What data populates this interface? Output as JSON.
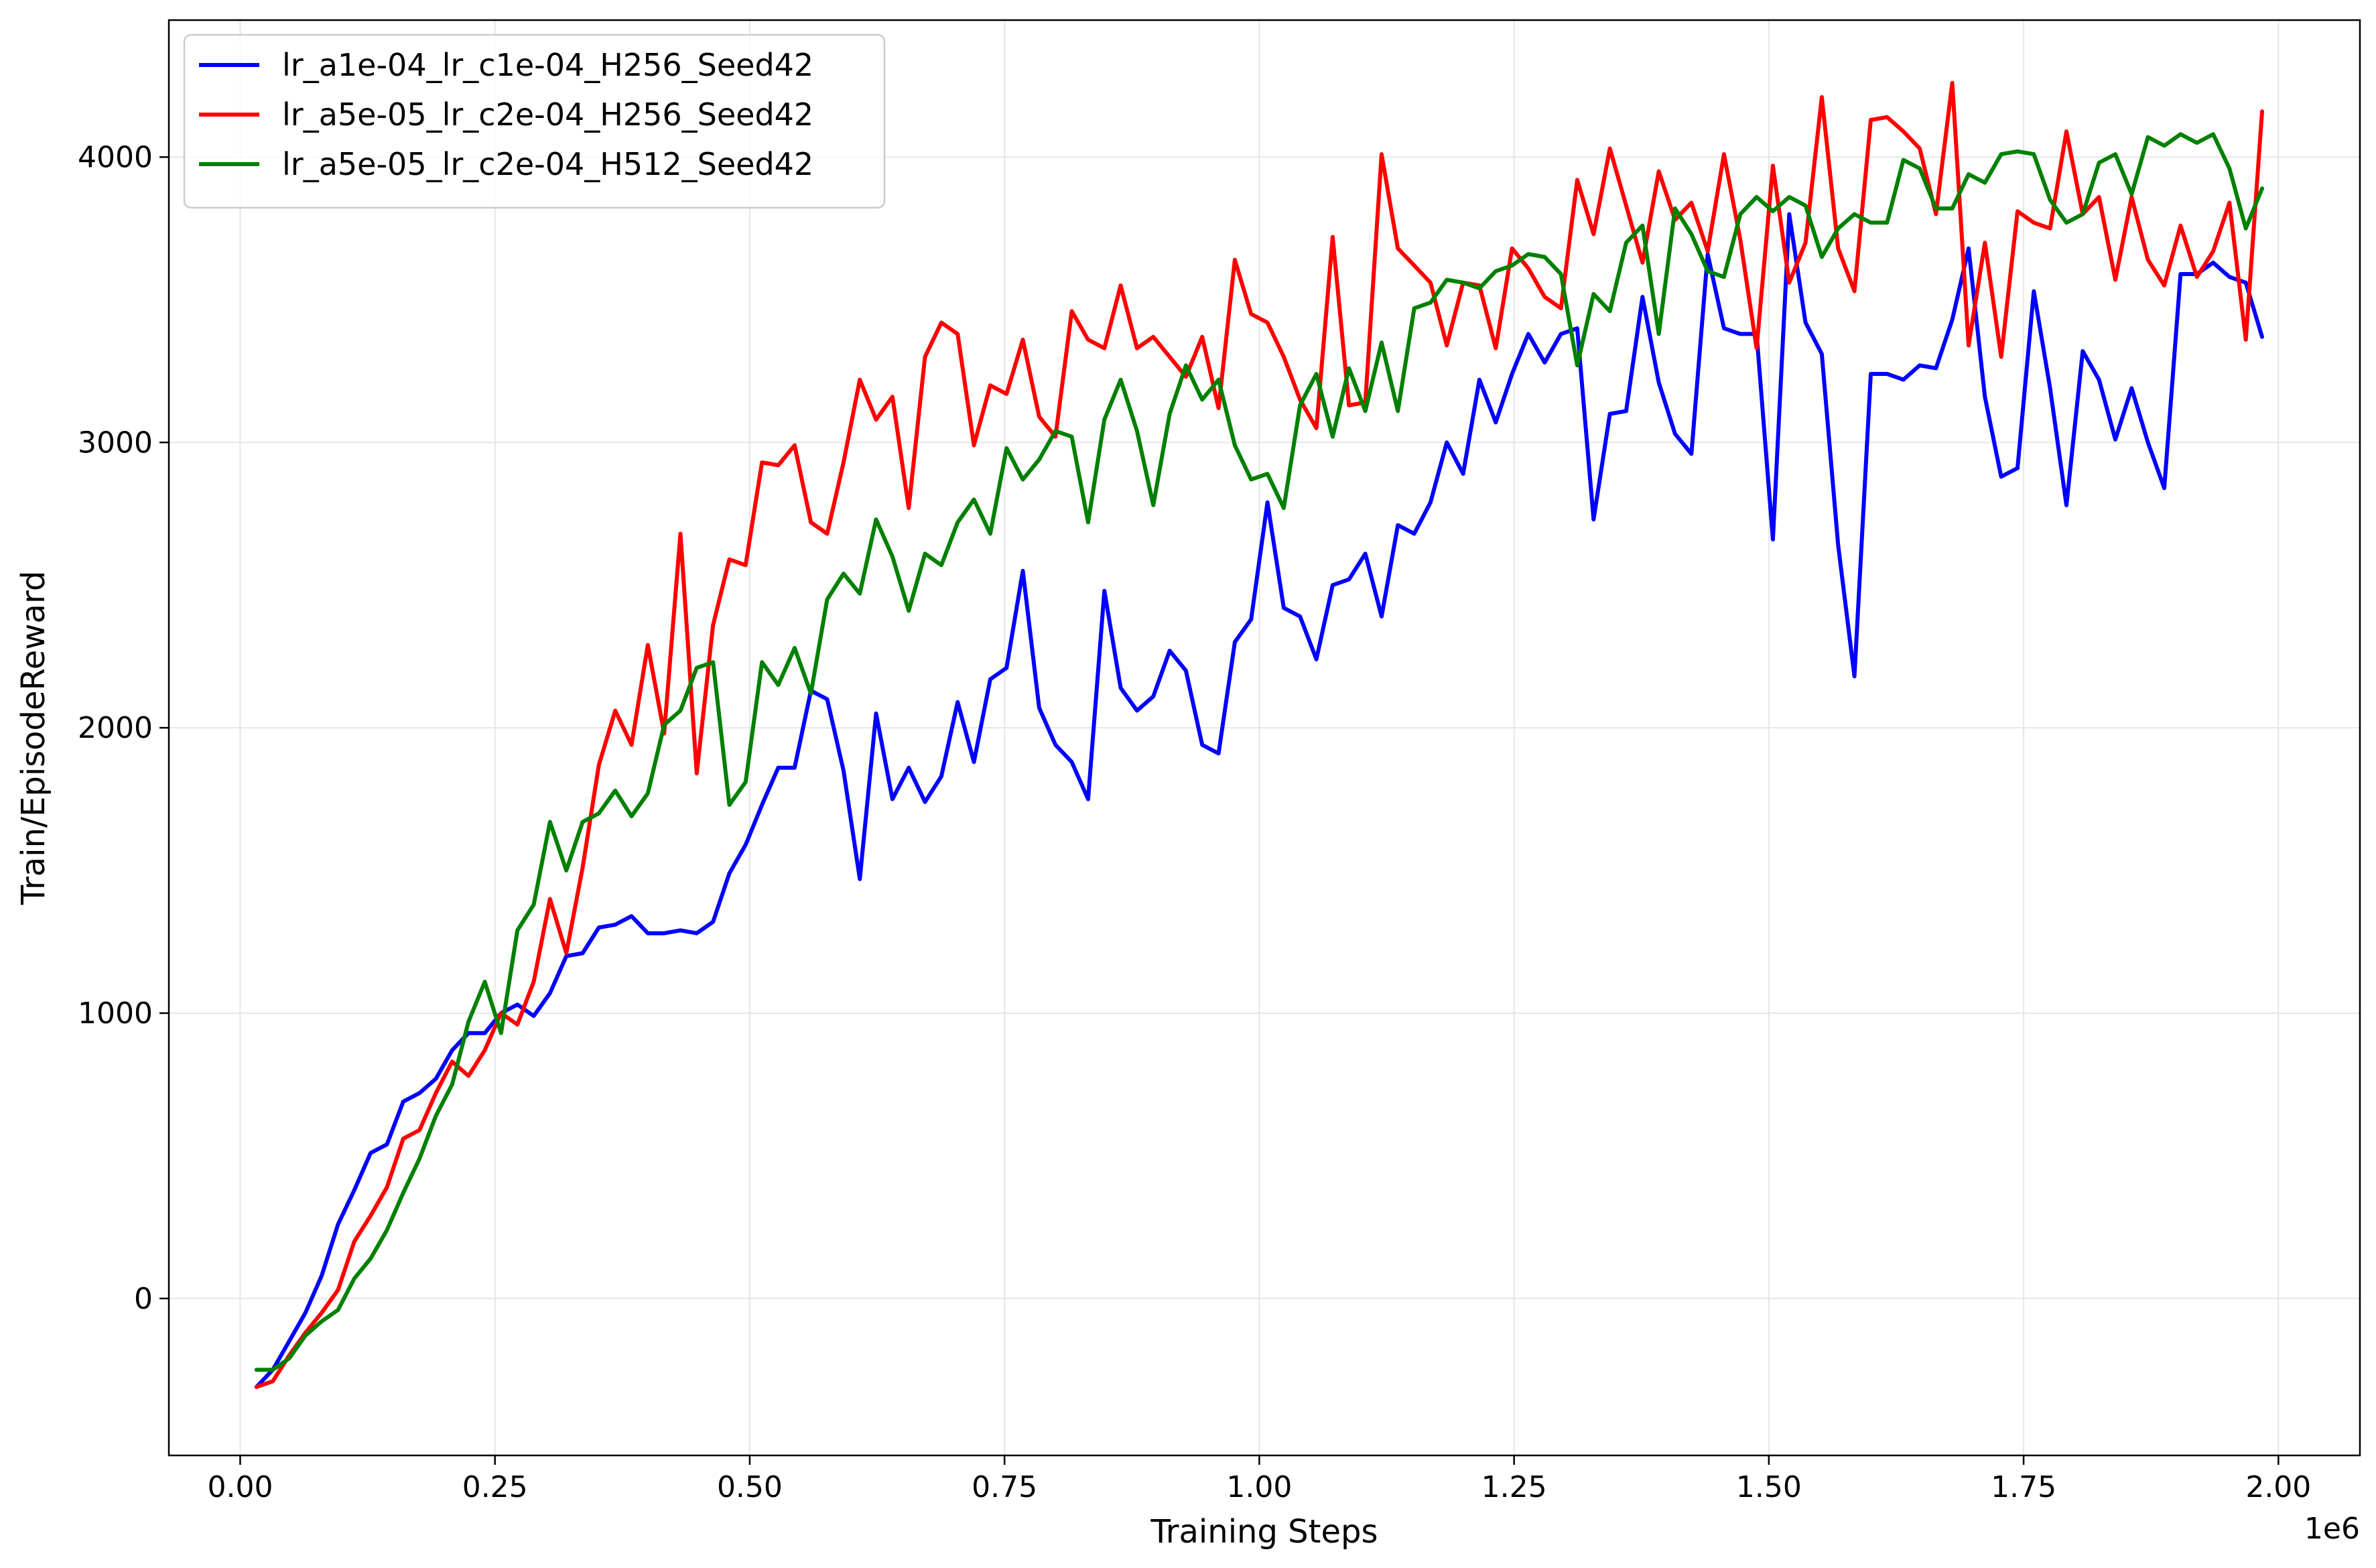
{
  "chart_data": {
    "type": "line",
    "title": "",
    "xlabel": "Training Steps",
    "ylabel": "Train/EpisodeReward",
    "x_offset_label": "1e6",
    "xlim": [
      -0.07,
      2.08
    ],
    "ylim": [
      -550,
      4480
    ],
    "xticks": [
      0.0,
      0.25,
      0.5,
      0.75,
      1.0,
      1.25,
      1.5,
      1.75,
      2.0
    ],
    "xtick_labels": [
      "0.00",
      "0.25",
      "0.50",
      "0.75",
      "1.00",
      "1.25",
      "1.50",
      "1.75",
      "2.00"
    ],
    "yticks": [
      0,
      1000,
      2000,
      3000,
      4000
    ],
    "ytick_labels": [
      "0",
      "1000",
      "2000",
      "3000",
      "4000"
    ],
    "grid": true,
    "legend_position": "top-left",
    "x_start": 0.016,
    "x_step": 0.016,
    "series": [
      {
        "name": "lr_a1e-04_lr_c1e-04_H256_Seed42",
        "color": "#0000ff",
        "values": [
          -310,
          -250,
          -150,
          -50,
          80,
          260,
          380,
          510,
          540,
          690,
          720,
          770,
          870,
          930,
          930,
          1000,
          1030,
          990,
          1070,
          1200,
          1210,
          1300,
          1310,
          1340,
          1280,
          1280,
          1290,
          1280,
          1320,
          1490,
          1590,
          1730,
          1860,
          1860,
          2130,
          2100,
          1850,
          1470,
          2050,
          1750,
          1860,
          1740,
          1830,
          2090,
          1880,
          2170,
          2210,
          2550,
          2070,
          1940,
          1880,
          1750,
          2480,
          2140,
          2060,
          2110,
          2270,
          2200,
          1940,
          1910,
          2300,
          2380,
          2790,
          2420,
          2390,
          2240,
          2500,
          2520,
          2610,
          2390,
          2710,
          2680,
          2790,
          3000,
          2890,
          3220,
          3070,
          3240,
          3380,
          3280,
          3380,
          3400,
          2730,
          3100,
          3110,
          3510,
          3210,
          3030,
          2960,
          3660,
          3400,
          3380,
          3380,
          2660,
          3800,
          3420,
          3310,
          2640,
          2180,
          3240,
          3240,
          3220,
          3270,
          3260,
          3430,
          3680,
          3160,
          2880,
          2910,
          3530,
          3190,
          2780,
          3320,
          3220,
          3010,
          3190,
          3000,
          2840,
          3590,
          3590,
          3630,
          3580,
          3560,
          3370
        ]
      },
      {
        "name": "lr_a5e-05_lr_c2e-04_H256_Seed42",
        "color": "#ff0000",
        "values": [
          -310,
          -290,
          -200,
          -120,
          -50,
          30,
          200,
          290,
          390,
          560,
          590,
          720,
          830,
          780,
          870,
          1000,
          960,
          1110,
          1400,
          1210,
          1510,
          1870,
          2060,
          1940,
          2290,
          1980,
          2680,
          1840,
          2360,
          2590,
          2570,
          2930,
          2920,
          2990,
          2720,
          2680,
          2930,
          3220,
          3080,
          3160,
          2770,
          3300,
          3420,
          3380,
          2990,
          3200,
          3170,
          3360,
          3090,
          3020,
          3460,
          3360,
          3330,
          3550,
          3330,
          3370,
          3300,
          3230,
          3370,
          3120,
          3640,
          3450,
          3420,
          3300,
          3150,
          3050,
          3720,
          3130,
          3140,
          4010,
          3680,
          3620,
          3560,
          3340,
          3560,
          3550,
          3330,
          3680,
          3610,
          3510,
          3470,
          3920,
          3730,
          4030,
          3830,
          3630,
          3950,
          3780,
          3840,
          3670,
          4010,
          3710,
          3330,
          3970,
          3560,
          3700,
          4210,
          3680,
          3530,
          4130,
          4140,
          4090,
          4030,
          3800,
          4260,
          3340,
          3700,
          3300,
          3810,
          3770,
          3750,
          4090,
          3800,
          3860,
          3570,
          3860,
          3640,
          3550,
          3760,
          3580,
          3670,
          3840,
          3360,
          4160
        ]
      },
      {
        "name": "lr_a5e-05_lr_c2e-04_H512_Seed42",
        "color": "#008000",
        "values": [
          -250,
          -250,
          -210,
          -130,
          -80,
          -40,
          70,
          140,
          240,
          370,
          490,
          640,
          750,
          970,
          1110,
          930,
          1290,
          1380,
          1670,
          1500,
          1670,
          1700,
          1780,
          1690,
          1770,
          2010,
          2060,
          2210,
          2230,
          1730,
          1810,
          2230,
          2150,
          2280,
          2120,
          2450,
          2540,
          2470,
          2730,
          2600,
          2410,
          2610,
          2570,
          2720,
          2800,
          2680,
          2980,
          2870,
          2940,
          3040,
          3020,
          2720,
          3080,
          3220,
          3040,
          2780,
          3100,
          3270,
          3150,
          3220,
          2990,
          2870,
          2890,
          2770,
          3130,
          3240,
          3020,
          3260,
          3110,
          3350,
          3110,
          3470,
          3490,
          3570,
          3560,
          3540,
          3600,
          3620,
          3660,
          3650,
          3590,
          3270,
          3520,
          3460,
          3700,
          3760,
          3380,
          3820,
          3730,
          3600,
          3580,
          3800,
          3860,
          3810,
          3860,
          3830,
          3650,
          3750,
          3800,
          3770,
          3770,
          3990,
          3960,
          3820,
          3820,
          3940,
          3910,
          4010,
          4020,
          4010,
          3850,
          3770,
          3800,
          3980,
          4010,
          3870,
          4070,
          4040,
          4080,
          4050,
          4080,
          3960,
          3750,
          3890
        ]
      }
    ]
  }
}
